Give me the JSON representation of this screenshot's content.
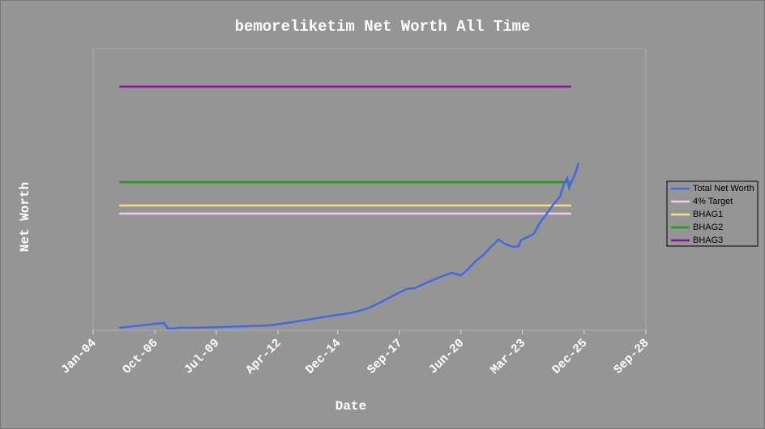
{
  "chart_data": {
    "type": "line",
    "title": "bemoreliketim Net Worth All Time",
    "x_label": "Date",
    "y_label": "Net Worth",
    "xlim": [
      "2004-01",
      "2028-09"
    ],
    "xticks": [
      {
        "value": "2004-01",
        "label": "Jan-04"
      },
      {
        "value": "2006-10",
        "label": "Oct-06"
      },
      {
        "value": "2009-07",
        "label": "Jul-09"
      },
      {
        "value": "2012-04",
        "label": "Apr-12"
      },
      {
        "value": "2014-12",
        "label": "Dec-14"
      },
      {
        "value": "2017-09",
        "label": "Sep-17"
      },
      {
        "value": "2020-06",
        "label": "Jun-20"
      },
      {
        "value": "2023-03",
        "label": "Mar-23"
      },
      {
        "value": "2025-12",
        "label": "Dec-25"
      },
      {
        "value": "2028-09",
        "label": "Sep-28"
      }
    ],
    "ylim": [
      0,
      100
    ],
    "legend": "right",
    "series": [
      {
        "name": "Total Net Worth",
        "color": "#4169e1",
        "x": [
          "2005-03",
          "2006-03",
          "2006-10",
          "2007-03",
          "2007-05",
          "2007-08",
          "2007-11",
          "2008-07",
          "2009-08",
          "2010-09",
          "2011-11",
          "2012-12",
          "2014-01",
          "2014-12",
          "2015-06",
          "2015-10",
          "2016-05",
          "2016-12",
          "2017-06",
          "2018-01",
          "2018-05",
          "2018-11",
          "2019-06",
          "2020-01",
          "2020-06",
          "2020-10",
          "2021-02",
          "2021-06",
          "2021-10",
          "2022-02",
          "2022-06",
          "2022-10",
          "2023-01",
          "2023-02",
          "2023-09",
          "2023-12",
          "2024-04",
          "2024-07",
          "2024-11",
          "2025-01",
          "2025-03",
          "2025-04",
          "2025-05",
          "2025-07",
          "2025-09"
        ],
        "values": [
          0.9,
          1.7,
          2.3,
          2.6,
          0.6,
          0.6,
          0.9,
          0.9,
          1.1,
          1.4,
          1.7,
          2.9,
          4.3,
          5.5,
          6.0,
          6.6,
          8.0,
          10.3,
          12.4,
          14.7,
          14.9,
          16.7,
          18.7,
          20.4,
          19.5,
          21.8,
          24.7,
          26.7,
          29.6,
          32.2,
          30.5,
          29.6,
          29.9,
          31.9,
          34.2,
          37.9,
          41.4,
          44.3,
          47.4,
          51.7,
          54.0,
          50.6,
          52.3,
          55.2,
          59.5
        ]
      },
      {
        "name": "4% Target",
        "color": "#f0c8f0",
        "x": [
          "2005-03",
          "2025-05"
        ],
        "values": [
          41.4,
          41.4
        ]
      },
      {
        "name": "BHAG1",
        "color": "#f5dc8c",
        "x": [
          "2005-03",
          "2025-05"
        ],
        "values": [
          44.3,
          44.3
        ]
      },
      {
        "name": "BHAG2",
        "color": "#1e9a1e",
        "x": [
          "2005-03",
          "2025-05"
        ],
        "values": [
          52.6,
          52.6
        ]
      },
      {
        "name": "BHAG3",
        "color": "#8a0f9a",
        "x": [
          "2005-03",
          "2025-05"
        ],
        "values": [
          86.5,
          86.5
        ]
      }
    ]
  }
}
